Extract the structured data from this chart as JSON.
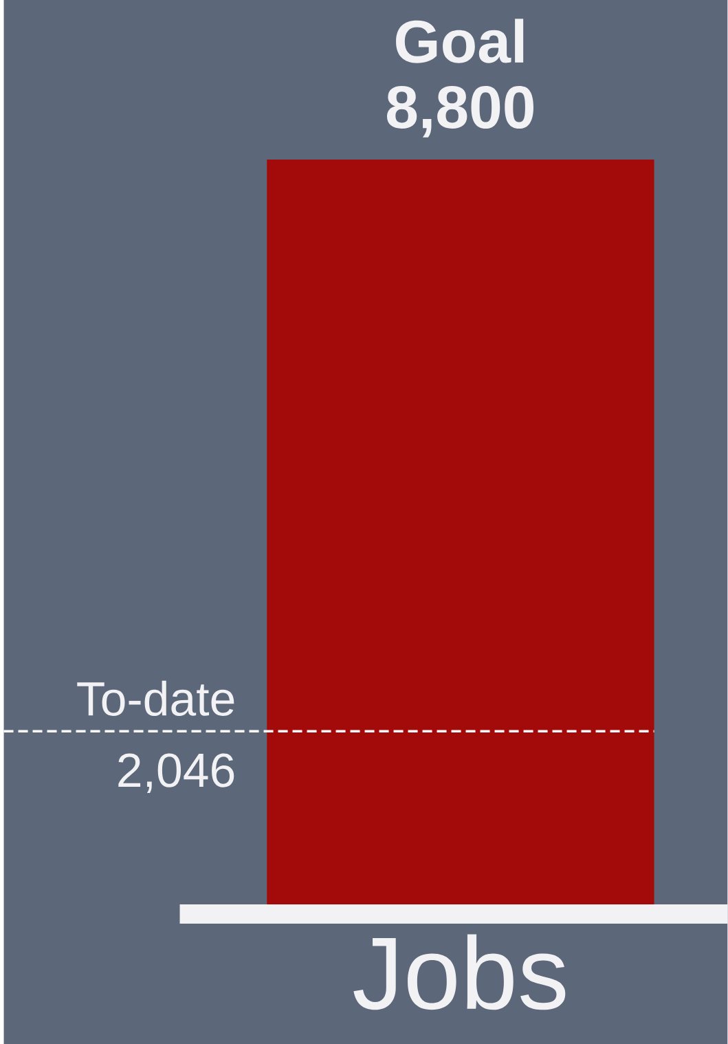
{
  "chart_data": {
    "type": "bar",
    "categories": [
      "Jobs"
    ],
    "values": [
      8800
    ],
    "color": "#a30a0a",
    "value_labels": [
      "8,800"
    ],
    "ref_lines": [
      {
        "axis": "y",
        "value": 2046,
        "label": "To-date",
        "color": "#ffffff",
        "line_style": "dashed"
      }
    ],
    "annotations": [
      "Goal",
      "2,046"
    ]
  }
}
